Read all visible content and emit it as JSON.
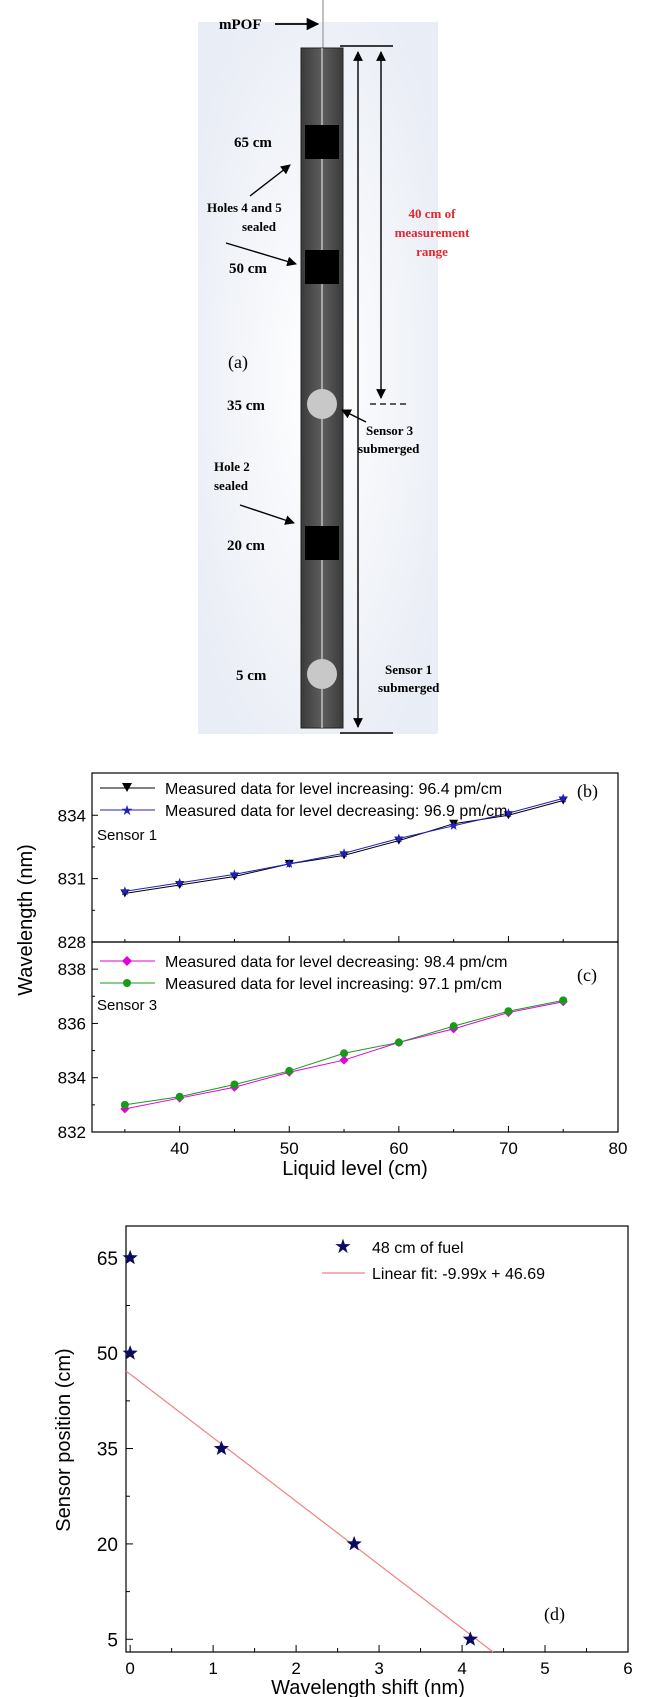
{
  "diagram": {
    "panel_label": "(a)",
    "fiber_label": "mPOF",
    "positions": [
      "65 cm",
      "50 cm",
      "35 cm",
      "20 cm",
      "5 cm"
    ],
    "annotations": {
      "holes45": [
        "Holes 4 and 5",
        "sealed"
      ],
      "hole2": [
        "Hole 2",
        "sealed"
      ],
      "sensor3": [
        "Sensor 3",
        "submerged"
      ],
      "sensor1": [
        "Sensor 1",
        "submerged"
      ],
      "range": [
        "40 cm of",
        "measurement",
        "range"
      ]
    },
    "colors": {
      "range_text": "#e8262d",
      "pipe": "#555555",
      "hole": "#000000",
      "sensor": "#c8c8c8"
    }
  },
  "chart_data": [
    {
      "id": "b",
      "type": "line",
      "panel_label": "(b)",
      "inner_label": "Sensor 1",
      "x": [
        35,
        40,
        45,
        50,
        55,
        60,
        65,
        70,
        75
      ],
      "xlim": [
        32,
        80
      ],
      "ylim": [
        828,
        836
      ],
      "yticks": [
        828,
        831,
        834
      ],
      "series": [
        {
          "name": "Measured data for level increasing: 96.4 pm/cm",
          "marker": "triangle-down",
          "color": "#000000",
          "values": [
            830.3,
            830.7,
            831.1,
            831.7,
            832.1,
            832.8,
            833.6,
            834.0,
            834.7
          ]
        },
        {
          "name": "Measured data for level decreasing: 96.9 pm/cm",
          "marker": "star",
          "color": "#2020c0",
          "values": [
            830.4,
            830.8,
            831.2,
            831.7,
            832.2,
            832.9,
            833.5,
            834.1,
            834.8
          ]
        }
      ]
    },
    {
      "id": "c",
      "type": "line",
      "panel_label": "(c)",
      "inner_label": "Sensor 3",
      "x": [
        35,
        40,
        45,
        50,
        55,
        60,
        65,
        70,
        75
      ],
      "xlim": [
        32,
        80
      ],
      "ylim": [
        832,
        839
      ],
      "yticks": [
        832,
        834,
        836,
        838
      ],
      "xticks": [
        40,
        50,
        60,
        70,
        80
      ],
      "xlabel": "Liquid level (cm)",
      "series": [
        {
          "name": "Measured data for level decreasing: 98.4 pm/cm",
          "marker": "diamond",
          "color": "#e000e0",
          "values": [
            832.85,
            833.25,
            833.65,
            834.2,
            834.65,
            835.3,
            835.8,
            836.4,
            836.8
          ]
        },
        {
          "name": "Measured data for level increasing: 97.1 pm/cm",
          "marker": "circle",
          "color": "#1a9a1a",
          "values": [
            833.0,
            833.3,
            833.75,
            834.25,
            834.9,
            835.3,
            835.9,
            836.45,
            836.85
          ]
        }
      ]
    },
    {
      "id": "d",
      "type": "scatter",
      "panel_label": "(d)",
      "x": [
        0,
        0,
        1.1,
        2.7,
        4.1
      ],
      "y": [
        65,
        50,
        35,
        20,
        5
      ],
      "xlim": [
        -0.05,
        6
      ],
      "ylim": [
        3,
        70
      ],
      "xticks": [
        0,
        1,
        2,
        3,
        4,
        5,
        6
      ],
      "yticks": [
        5,
        20,
        35,
        50,
        65
      ],
      "xlabel": "Wavelength shift (nm)",
      "ylabel": "Sensor position (cm)",
      "series_name": "48 cm of fuel",
      "fit": {
        "name": "Linear fit: -9.99x + 46.69",
        "slope": -9.99,
        "intercept": 46.69,
        "color": "#f08080"
      },
      "marker_color": "#0a0a60"
    }
  ],
  "shared_ylabel": "Wavelength (nm)"
}
